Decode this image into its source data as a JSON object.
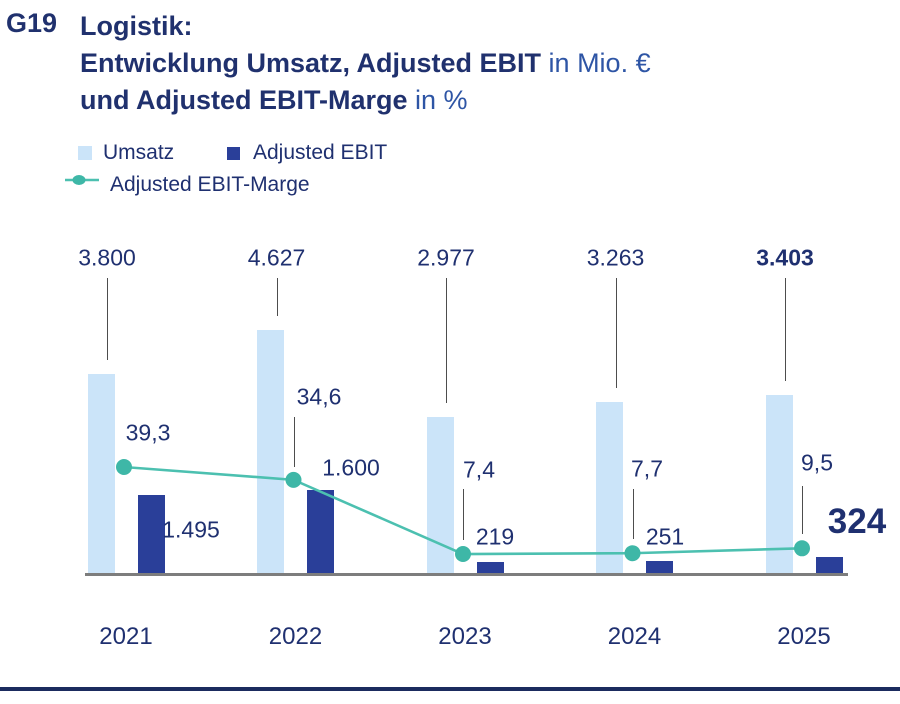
{
  "figure_id": "G19",
  "title": {
    "line1_bold": "Logistik:",
    "line2_bold": "Entwicklung Umsatz, Adjusted EBIT",
    "line2_unit": " in Mio. €",
    "line3_bold": "und Adjusted EBIT-Marge",
    "line3_unit": " in %"
  },
  "legend": [
    {
      "label": "Umsatz",
      "swatch": "light-blue-square"
    },
    {
      "label": "Adjusted EBIT",
      "swatch": "dark-blue-square"
    },
    {
      "label": "Adjusted EBIT-Marge",
      "swatch": "teal-line-dot"
    }
  ],
  "colors": {
    "navy_text": "#1f3070",
    "unit_blue": "#2e55a5",
    "umsatz_bar": "#cbe4f9",
    "ebit_bar": "#2a3f99",
    "marge_line": "#4cc0b0",
    "marge_dot": "#3eb7a7",
    "axis_gray": "#7d7d7d",
    "connector_gray": "#4d4d4d",
    "bottom_rule": "#1b2b5e"
  },
  "chart_data": {
    "type": "bar",
    "subtype": "grouped-bars-with-line",
    "categories": [
      "2021",
      "2022",
      "2023",
      "2024",
      "2025"
    ],
    "series": [
      {
        "name": "Umsatz",
        "type": "bar",
        "unit": "Mio. €",
        "values": [
          3800,
          4627,
          2977,
          3263,
          3403
        ],
        "labels": [
          "3.800",
          "4.627",
          "2.977",
          "3.263",
          "3.403"
        ]
      },
      {
        "name": "Adjusted EBIT",
        "type": "bar",
        "unit": "Mio. €",
        "values": [
          1495,
          1600,
          219,
          251,
          324
        ],
        "labels": [
          "1.495",
          "1.600",
          "219",
          "251",
          "324"
        ]
      },
      {
        "name": "Adjusted EBIT-Marge",
        "type": "line",
        "unit": "%",
        "values": [
          39.3,
          34.6,
          7.4,
          7.7,
          9.5
        ],
        "labels": [
          "39,3",
          "34,6",
          "7,4",
          "7,7",
          "9,5"
        ]
      }
    ],
    "highlight_last_category": true,
    "grid": false,
    "legend_position": "top-left",
    "ylim_bars": [
      0,
      4700
    ],
    "ylim_line_pct": [
      0,
      40
    ]
  }
}
